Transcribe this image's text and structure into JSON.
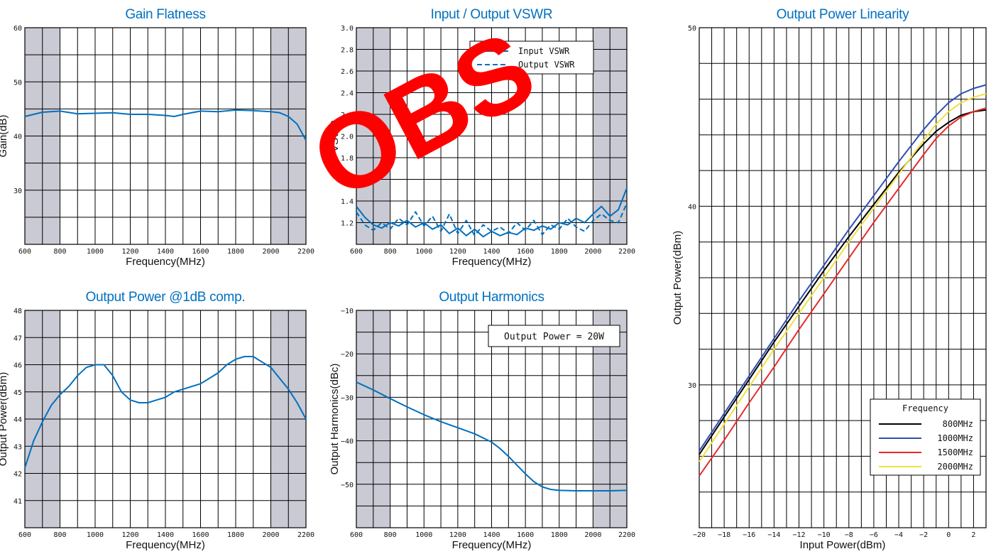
{
  "watermark": "OBS",
  "chart_data": [
    {
      "type": "line",
      "title": "Gain Flatness",
      "xlabel": "Frequency(MHz)",
      "ylabel": "Gain(dB)",
      "xlim": [
        600,
        2200
      ],
      "ylim": [
        20,
        60
      ],
      "xticks": [
        600,
        800,
        1000,
        1200,
        1400,
        1600,
        1800,
        2000,
        2200
      ],
      "yticks": [
        30,
        40,
        50,
        60
      ],
      "shaded_ranges": [
        [
          600,
          800
        ],
        [
          2000,
          2200
        ]
      ],
      "series": [
        {
          "color": "#0070c0",
          "dash": "solid",
          "x": [
            600,
            700,
            800,
            900,
            1000,
            1100,
            1200,
            1300,
            1400,
            1450,
            1500,
            1600,
            1700,
            1800,
            1900,
            2000,
            2050,
            2100,
            2150,
            2200
          ],
          "y": [
            43.6,
            44.4,
            44.6,
            44.1,
            44.2,
            44.3,
            44.0,
            44.0,
            43.8,
            43.6,
            44.0,
            44.6,
            44.5,
            44.8,
            44.7,
            44.5,
            44.3,
            43.6,
            42.2,
            39.2
          ]
        }
      ]
    },
    {
      "type": "line",
      "title": "Input / Output VSWR",
      "xlabel": "Frequency(MHz)",
      "ylabel": "VSWR",
      "xlim": [
        600,
        2200
      ],
      "ylim": [
        1.0,
        3.0
      ],
      "xticks": [
        600,
        800,
        1000,
        1200,
        1400,
        1600,
        1800,
        2000,
        2200
      ],
      "yticks": [
        1.2,
        1.4,
        1.6,
        1.8,
        2.0,
        2.2,
        2.4,
        2.6,
        2.8,
        3.0
      ],
      "ytick_labels": [
        "1.2",
        "1.4",
        "1.6",
        "1.8",
        "2.0",
        "2.2",
        "2.4",
        "2.6",
        "2.8",
        "3.0"
      ],
      "shaded_ranges": [
        [
          600,
          800
        ],
        [
          2000,
          2200
        ]
      ],
      "legend": [
        {
          "name": "Input VSWR",
          "dash": "solid"
        },
        {
          "name": "Output VSWR",
          "dash": "dashed"
        }
      ],
      "series": [
        {
          "name": "Input VSWR",
          "color": "#0070c0",
          "dash": "solid",
          "x": [
            600,
            650,
            700,
            750,
            800,
            850,
            900,
            950,
            1000,
            1050,
            1100,
            1150,
            1200,
            1250,
            1300,
            1350,
            1400,
            1450,
            1500,
            1550,
            1600,
            1650,
            1700,
            1750,
            1800,
            1850,
            1900,
            1950,
            2000,
            2050,
            2100,
            2150,
            2200
          ],
          "y": [
            1.35,
            1.25,
            1.18,
            1.15,
            1.2,
            1.17,
            1.22,
            1.16,
            1.2,
            1.14,
            1.18,
            1.1,
            1.15,
            1.08,
            1.14,
            1.07,
            1.12,
            1.08,
            1.11,
            1.09,
            1.15,
            1.13,
            1.17,
            1.14,
            1.2,
            1.18,
            1.24,
            1.2,
            1.28,
            1.35,
            1.26,
            1.32,
            1.52
          ]
        },
        {
          "name": "Output VSWR",
          "color": "#0070c0",
          "dash": "dashed",
          "x": [
            600,
            650,
            700,
            750,
            800,
            850,
            900,
            950,
            1000,
            1050,
            1100,
            1150,
            1200,
            1250,
            1300,
            1350,
            1400,
            1450,
            1500,
            1550,
            1600,
            1650,
            1700,
            1750,
            1800,
            1850,
            1900,
            1950,
            2000,
            2050,
            2100,
            2150,
            2200
          ],
          "y": [
            1.3,
            1.18,
            1.13,
            1.2,
            1.14,
            1.24,
            1.18,
            1.3,
            1.17,
            1.26,
            1.12,
            1.28,
            1.1,
            1.22,
            1.08,
            1.18,
            1.12,
            1.16,
            1.1,
            1.2,
            1.13,
            1.22,
            1.09,
            1.18,
            1.14,
            1.24,
            1.16,
            1.12,
            1.22,
            1.28,
            1.22,
            1.2,
            1.38
          ]
        }
      ]
    },
    {
      "type": "line",
      "title": "Output Power @1dB comp.",
      "xlabel": "Frequency(MHz)",
      "ylabel": "Output Power(dBm)",
      "xlim": [
        600,
        2200
      ],
      "ylim": [
        40,
        48
      ],
      "xticks": [
        600,
        800,
        1000,
        1200,
        1400,
        1600,
        1800,
        2000,
        2200
      ],
      "yticks": [
        41,
        42,
        43,
        44,
        45,
        46,
        47,
        48
      ],
      "shaded_ranges": [
        [
          600,
          800
        ],
        [
          2000,
          2200
        ]
      ],
      "series": [
        {
          "color": "#0070c0",
          "dash": "solid",
          "x": [
            600,
            650,
            700,
            750,
            800,
            850,
            900,
            950,
            1000,
            1050,
            1100,
            1150,
            1200,
            1250,
            1300,
            1350,
            1400,
            1450,
            1500,
            1600,
            1700,
            1750,
            1800,
            1850,
            1900,
            1950,
            2000,
            2050,
            2100,
            2150,
            2200
          ],
          "y": [
            42.2,
            43.2,
            43.9,
            44.5,
            44.9,
            45.2,
            45.6,
            45.9,
            46.0,
            46.0,
            45.6,
            45.0,
            44.7,
            44.6,
            44.6,
            44.7,
            44.8,
            45.0,
            45.1,
            45.3,
            45.7,
            46.0,
            46.2,
            46.3,
            46.3,
            46.1,
            45.9,
            45.5,
            45.1,
            44.6,
            44.0
          ]
        }
      ]
    },
    {
      "type": "line",
      "title": "Output Harmonics",
      "xlabel": "Frequency(MHz)",
      "ylabel": "Output Harmonics(dBc)",
      "xlim": [
        600,
        2200
      ],
      "ylim": [
        -60,
        -10
      ],
      "xticks": [
        600,
        800,
        1000,
        1200,
        1400,
        1600,
        1800,
        2000,
        2200
      ],
      "yticks": [
        -50,
        -40,
        -30,
        -20,
        -10
      ],
      "ytick_labels": [
        "−50",
        "−40",
        "−30",
        "−20",
        "−10"
      ],
      "shaded_ranges": [
        [
          600,
          800
        ],
        [
          2000,
          2200
        ]
      ],
      "annotation": "Output Power = 20W",
      "series": [
        {
          "color": "#0070c0",
          "dash": "solid",
          "x": [
            600,
            700,
            800,
            900,
            1000,
            1100,
            1200,
            1300,
            1400,
            1450,
            1500,
            1550,
            1600,
            1650,
            1700,
            1750,
            1800,
            1900,
            2000,
            2100,
            2200
          ],
          "y": [
            -26.5,
            -28.3,
            -30.3,
            -32.2,
            -34.0,
            -35.6,
            -37.0,
            -38.4,
            -40.3,
            -41.8,
            -43.6,
            -45.6,
            -47.6,
            -49.4,
            -50.6,
            -51.2,
            -51.4,
            -51.5,
            -51.5,
            -51.5,
            -51.4
          ]
        }
      ]
    },
    {
      "type": "line",
      "title": "Output Power Linearity",
      "xlabel": "Input Power(dBm)",
      "ylabel": "Output Power(dBm)",
      "xlim": [
        -20,
        3
      ],
      "ylim": [
        22,
        50
      ],
      "xticks": [
        -20,
        -18,
        -16,
        -14,
        -12,
        -10,
        -8,
        -6,
        -4,
        -2,
        0,
        2
      ],
      "xtick_labels": [
        "−20",
        "−18",
        "−16",
        "−14",
        "−12",
        "−10",
        "−8",
        "−6",
        "−4",
        "−2",
        "0",
        "2"
      ],
      "yticks": [
        30,
        40,
        50
      ],
      "legend_title": "Frequency",
      "series": [
        {
          "name": "800MHz",
          "color": "#000000",
          "dash": "solid",
          "x": [
            -20,
            -18,
            -16,
            -14,
            -12,
            -10,
            -8,
            -6,
            -4,
            -2,
            -1,
            0,
            1,
            2,
            3
          ],
          "y": [
            26.1,
            28.2,
            30.3,
            32.4,
            34.4,
            36.4,
            38.3,
            40.1,
            41.9,
            43.5,
            44.2,
            44.7,
            45.1,
            45.3,
            45.4
          ]
        },
        {
          "name": "1000MHz",
          "color": "#2f4fb0",
          "dash": "solid",
          "x": [
            -20,
            -18,
            -16,
            -14,
            -12,
            -10,
            -8,
            -6,
            -4,
            -2,
            -1,
            0,
            1,
            2,
            3
          ],
          "y": [
            26.3,
            28.4,
            30.5,
            32.6,
            34.7,
            36.7,
            38.7,
            40.6,
            42.5,
            44.3,
            45.1,
            45.8,
            46.3,
            46.6,
            46.8
          ]
        },
        {
          "name": "1500MHz",
          "color": "#e62a2a",
          "dash": "solid",
          "x": [
            -20,
            -18,
            -16,
            -14,
            -12,
            -10,
            -8,
            -6,
            -4,
            -2,
            -1,
            0,
            1,
            2,
            3
          ],
          "y": [
            24.9,
            26.9,
            29.0,
            31.0,
            33.1,
            35.1,
            37.1,
            39.1,
            41.0,
            42.9,
            43.8,
            44.5,
            45.0,
            45.3,
            45.5
          ]
        },
        {
          "name": "2000MHz",
          "color": "#f0e040",
          "dash": "solid",
          "x": [
            -20,
            -18,
            -16,
            -14,
            -12,
            -10,
            -8,
            -6,
            -4,
            -2,
            -1,
            0,
            1,
            2,
            3
          ],
          "y": [
            25.7,
            27.8,
            29.9,
            32.0,
            34.0,
            36.0,
            38.0,
            39.9,
            41.8,
            43.7,
            44.6,
            45.3,
            45.8,
            46.1,
            46.3
          ]
        }
      ]
    }
  ]
}
